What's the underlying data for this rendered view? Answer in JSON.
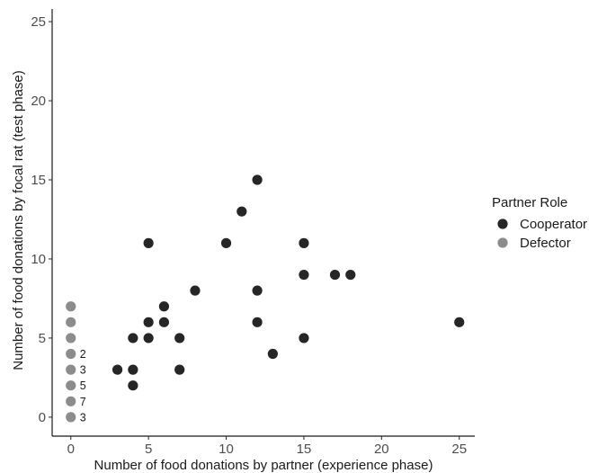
{
  "chart_data": {
    "type": "scatter",
    "xlabel": "Number of food donations by partner (experience phase)",
    "ylabel": "Number of food donations by focal rat (test phase)",
    "xlim": [
      -1.2,
      26.0
    ],
    "ylim": [
      -1.2,
      25.8
    ],
    "x_ticks": [
      0,
      5,
      10,
      15,
      20,
      25
    ],
    "y_ticks": [
      0,
      5,
      10,
      15,
      20,
      25
    ],
    "x_tick_labels": [
      "0",
      "5",
      "10",
      "15",
      "20",
      "25"
    ],
    "y_tick_labels": [
      "0",
      "5",
      "10",
      "15",
      "20",
      "25"
    ],
    "grid": false,
    "legend": {
      "title": "Partner Role",
      "position": "right",
      "entries": [
        {
          "label": "Cooperator",
          "color": "#262626"
        },
        {
          "label": "Defector",
          "color": "#8c8c8c"
        }
      ]
    },
    "series": [
      {
        "name": "Cooperator",
        "color": "#262626",
        "points": [
          {
            "x": 3,
            "y": 3
          },
          {
            "x": 4,
            "y": 2
          },
          {
            "x": 4,
            "y": 3
          },
          {
            "x": 4,
            "y": 5
          },
          {
            "x": 5,
            "y": 5
          },
          {
            "x": 5,
            "y": 6
          },
          {
            "x": 5,
            "y": 11
          },
          {
            "x": 6,
            "y": 6
          },
          {
            "x": 6,
            "y": 7
          },
          {
            "x": 7,
            "y": 3
          },
          {
            "x": 7,
            "y": 5
          },
          {
            "x": 8,
            "y": 8
          },
          {
            "x": 10,
            "y": 11
          },
          {
            "x": 11,
            "y": 13
          },
          {
            "x": 12,
            "y": 15
          },
          {
            "x": 12,
            "y": 8
          },
          {
            "x": 12,
            "y": 6
          },
          {
            "x": 13,
            "y": 4
          },
          {
            "x": 15,
            "y": 11
          },
          {
            "x": 15,
            "y": 9
          },
          {
            "x": 15,
            "y": 5
          },
          {
            "x": 17,
            "y": 9
          },
          {
            "x": 18,
            "y": 9
          },
          {
            "x": 25,
            "y": 6
          }
        ]
      },
      {
        "name": "Defector",
        "color": "#8c8c8c",
        "points": [
          {
            "x": 0,
            "y": 7
          },
          {
            "x": 0,
            "y": 6
          },
          {
            "x": 0,
            "y": 5
          },
          {
            "x": 0,
            "y": 4
          },
          {
            "x": 0,
            "y": 3
          },
          {
            "x": 0,
            "y": 2
          },
          {
            "x": 0,
            "y": 1
          },
          {
            "x": 0,
            "y": 0
          }
        ]
      }
    ],
    "annotations": [
      {
        "x": 0,
        "y": 4,
        "text": "2"
      },
      {
        "x": 0,
        "y": 3,
        "text": "3"
      },
      {
        "x": 0,
        "y": 2,
        "text": "5"
      },
      {
        "x": 0,
        "y": 1,
        "text": "7"
      },
      {
        "x": 0,
        "y": 0,
        "text": "3"
      }
    ]
  }
}
